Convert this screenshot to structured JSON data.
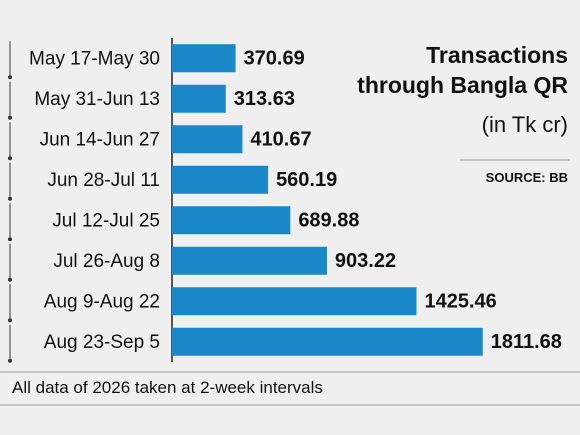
{
  "chart_data": {
    "type": "bar",
    "orientation": "horizontal",
    "title": "Transactions through Bangla QR",
    "subtitle": "(in Tk cr)",
    "source": "SOURCE: BB",
    "note": "All data of 2026 taken at 2-week intervals",
    "categories": [
      "May 17-May 30",
      "May 31-Jun 13",
      "Jun 14-Jun 27",
      "Jun 28-Jul 11",
      "Jul 12-Jul 25",
      "Jul 26-Aug 8",
      "Aug 9-Aug 22",
      "Aug 23-Sep 5"
    ],
    "values": [
      370.69,
      313.63,
      410.67,
      560.19,
      689.88,
      903.22,
      1425.46,
      1811.68
    ],
    "color": "#1a87c9",
    "xlim": [
      0,
      2000
    ]
  }
}
